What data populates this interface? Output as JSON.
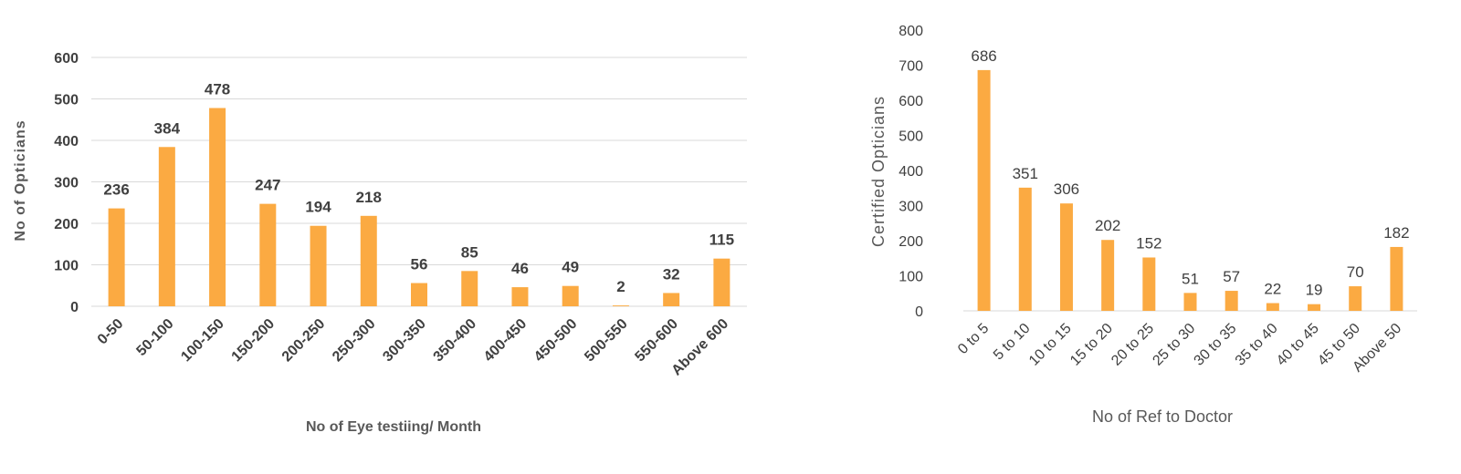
{
  "chart_data": [
    {
      "type": "bar",
      "title": "",
      "xlabel": "No of Eye testiing/ Month",
      "ylabel": "No of Opticians",
      "ylim": [
        0,
        600
      ],
      "yticks": [
        0,
        100,
        200,
        300,
        400,
        500,
        600
      ],
      "grid": true,
      "bar_color": "#FBAA42",
      "categories": [
        "0-50",
        "50-100",
        "100-150",
        "150-200",
        "200-250",
        "250-300",
        "300-350",
        "350-400",
        "400-450",
        "450-500",
        "500-550",
        "550-600",
        "Above 600"
      ],
      "values": [
        236,
        384,
        478,
        247,
        194,
        218,
        56,
        85,
        46,
        49,
        2,
        32,
        115
      ]
    },
    {
      "type": "bar",
      "title": "",
      "xlabel": "No of  Ref to Doctor",
      "ylabel": "Certified Opticians",
      "ylim": [
        0,
        800
      ],
      "yticks": [
        0,
        100,
        200,
        300,
        400,
        500,
        600,
        700,
        800
      ],
      "grid": false,
      "bar_color": "#FBAA42",
      "categories": [
        "0 to 5",
        "5 to 10",
        "10 to 15",
        "15 to 20",
        "20 to 25",
        "25 to 30",
        "30 to 35",
        "35 to 40",
        "40 to 45",
        "45 to 50",
        "Above 50"
      ],
      "values": [
        686,
        351,
        306,
        202,
        152,
        51,
        57,
        22,
        19,
        70,
        182
      ]
    }
  ]
}
